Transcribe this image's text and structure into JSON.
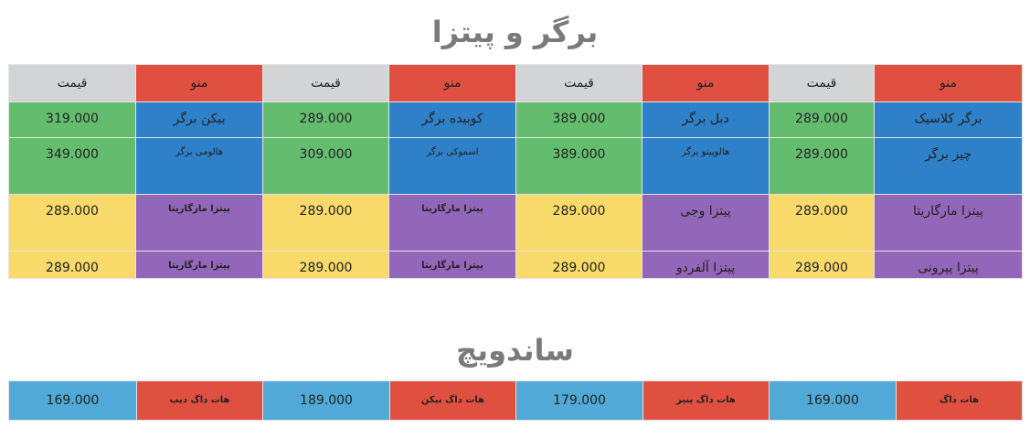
{
  "sections": {
    "burger_pizza_title": "برگر و پیتزا",
    "sandwich_title": "ساندویچ"
  },
  "menu_table": {
    "header": {
      "menu": "منو",
      "price": "قیمت"
    },
    "rows": [
      {
        "items": [
          {
            "name": "برگر کلاسیک",
            "price": "289.000"
          },
          {
            "name": "دبل برگر",
            "price": "389.000"
          },
          {
            "name": "کوبیده برگر",
            "price": "289.000"
          },
          {
            "name": "بیکن برگر",
            "price": "319.000"
          }
        ]
      },
      {
        "items": [
          {
            "name": "چیز برگر",
            "price": "289.000"
          },
          {
            "name": "هالوپینو برگر",
            "price": "389.000"
          },
          {
            "name": "اسموکی برگر",
            "price": "309.000"
          },
          {
            "name": "هالومی برگر",
            "price": "349.000"
          }
        ]
      },
      {
        "items": [
          {
            "name": "پیتزا مارگاریتا",
            "price": "289.000"
          },
          {
            "name": "پیتزا وجی",
            "price": "289.000"
          },
          {
            "name": "پیتزا مارگاریتا",
            "price": "289.000"
          },
          {
            "name": "پیتزا مارگاریتا",
            "price": "289.000"
          }
        ]
      },
      {
        "items": [
          {
            "name": "پیتزا پپرونی",
            "price": "289.000"
          },
          {
            "name": "پیتزا آلفردو",
            "price": "289.000"
          },
          {
            "name": "پیتزا مارگاریتا",
            "price": "289.000"
          },
          {
            "name": "پیتزا مارگاریتا",
            "price": "289.000"
          }
        ]
      }
    ]
  },
  "sandwich_table": {
    "items": [
      {
        "name": "هات داگ",
        "price": "169.000"
      },
      {
        "name": "هات داگ پنیر",
        "price": "179.000"
      },
      {
        "name": "هات داگ بیکن",
        "price": "189.000"
      },
      {
        "name": "هات داگ دیپ",
        "price": "169.000"
      }
    ]
  },
  "colors": {
    "header_price": "#d2d4d6",
    "header_menu": "#e05040",
    "burger_menu_cell": "#2e80c8",
    "burger_price_cell": "#64bd6e",
    "pizza_menu_cell": "#9266b8",
    "pizza_price_cell": "#f7da6a",
    "sandwich_menu_cell": "#e05040",
    "sandwich_price_cell": "#50a9d7",
    "title_text": "#7a7a7a"
  }
}
